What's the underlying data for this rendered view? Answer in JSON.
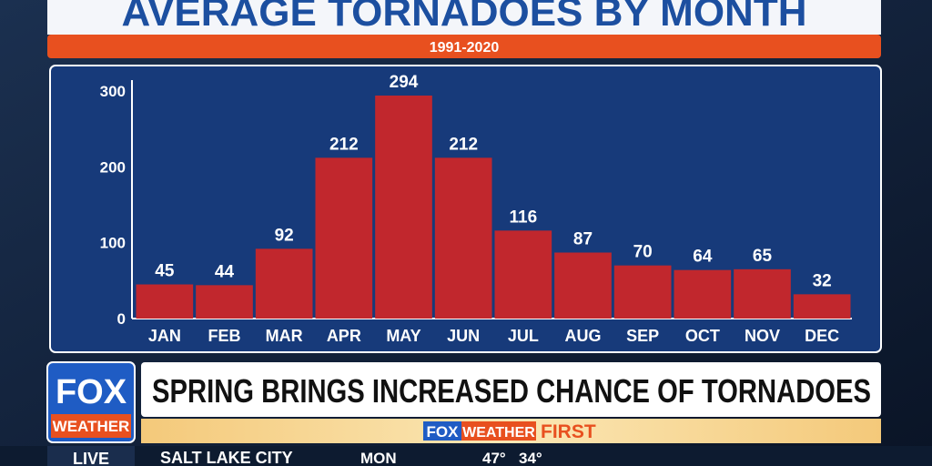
{
  "chart_data": {
    "type": "bar",
    "title": "AVERAGE TORNADOES BY MONTH",
    "subtitle": "1991-2020",
    "categories": [
      "JAN",
      "FEB",
      "MAR",
      "APR",
      "MAY",
      "JUN",
      "JUL",
      "AUG",
      "SEP",
      "OCT",
      "NOV",
      "DEC"
    ],
    "values": [
      45,
      44,
      92,
      212,
      294,
      212,
      116,
      87,
      70,
      64,
      65,
      32
    ],
    "color": "#c1272d",
    "ylim": [
      0,
      300
    ],
    "yticks": [
      0,
      100,
      200,
      300
    ],
    "grid": false
  },
  "lower_third": {
    "logo_top": "FOX",
    "logo_bottom": "WEATHER",
    "headline": "SPRING BRINGS INCREASED CHANCE OF TORNADOES",
    "brand_fox": "FOX",
    "brand_weather": "WEATHER",
    "brand_first": "FIRST"
  },
  "ticker": {
    "status": "LIVE",
    "city": "SALT LAKE CITY",
    "day": "MON",
    "high": "47°",
    "low": "34°"
  }
}
